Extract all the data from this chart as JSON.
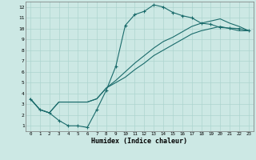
{
  "xlabel": "Humidex (Indice chaleur)",
  "bg_color": "#cce8e4",
  "grid_color": "#add4cf",
  "line_color": "#1a6b6b",
  "xlim": [
    -0.5,
    23.5
  ],
  "ylim": [
    0.5,
    12.5
  ],
  "xticks": [
    0,
    1,
    2,
    3,
    4,
    5,
    6,
    7,
    8,
    9,
    10,
    11,
    12,
    13,
    14,
    15,
    16,
    17,
    18,
    19,
    20,
    21,
    22,
    23
  ],
  "yticks": [
    1,
    2,
    3,
    4,
    5,
    6,
    7,
    8,
    9,
    10,
    11,
    12
  ],
  "line1_x": [
    0,
    1,
    2,
    3,
    4,
    5,
    6,
    7,
    8,
    9,
    10,
    11,
    12,
    13,
    14,
    15,
    16,
    17,
    18,
    19,
    20,
    21,
    22,
    23
  ],
  "line1_y": [
    3.5,
    2.5,
    2.2,
    1.5,
    1.0,
    1.0,
    0.85,
    2.5,
    4.3,
    6.5,
    10.3,
    11.3,
    11.6,
    12.2,
    12.0,
    11.5,
    11.2,
    11.0,
    10.5,
    10.4,
    10.1,
    10.05,
    10.0,
    9.8
  ],
  "line2_x": [
    0,
    1,
    2,
    3,
    4,
    5,
    6,
    7,
    8,
    9,
    10,
    11,
    12,
    13,
    14,
    15,
    16,
    17,
    18,
    19,
    20,
    21,
    22,
    23
  ],
  "line2_y": [
    3.5,
    2.5,
    2.2,
    3.2,
    3.2,
    3.2,
    3.2,
    3.5,
    4.5,
    5.2,
    6.0,
    6.8,
    7.5,
    8.2,
    8.8,
    9.2,
    9.7,
    10.2,
    10.5,
    10.7,
    10.9,
    10.5,
    10.2,
    9.8
  ],
  "line3_x": [
    0,
    1,
    2,
    3,
    4,
    5,
    6,
    7,
    8,
    9,
    10,
    11,
    12,
    13,
    14,
    15,
    16,
    17,
    18,
    19,
    20,
    21,
    22,
    23
  ],
  "line3_y": [
    3.5,
    2.5,
    2.2,
    3.2,
    3.2,
    3.2,
    3.2,
    3.5,
    4.5,
    5.0,
    5.5,
    6.2,
    6.8,
    7.5,
    8.0,
    8.5,
    9.0,
    9.5,
    9.8,
    10.0,
    10.2,
    10.0,
    9.8,
    9.8
  ]
}
